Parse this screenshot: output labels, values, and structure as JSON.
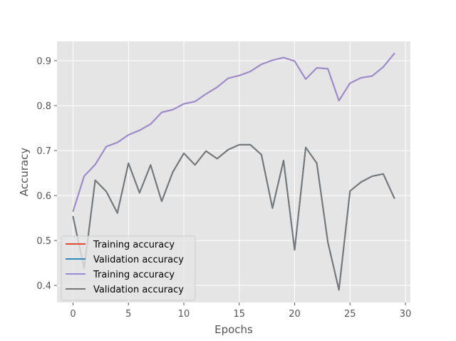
{
  "chart_data": {
    "type": "line",
    "xlabel": "Epochs",
    "ylabel": "Accuracy",
    "xlim": [
      -1.45,
      30.45
    ],
    "ylim": [
      0.362,
      0.943
    ],
    "xticks": [
      0,
      5,
      10,
      15,
      20,
      25,
      30
    ],
    "yticks": [
      0.4,
      0.5,
      0.6,
      0.7,
      0.8,
      0.9
    ],
    "grid": true,
    "legend_position": "lower-left",
    "x": [
      0,
      1,
      2,
      3,
      4,
      5,
      6,
      7,
      8,
      9,
      10,
      11,
      12,
      13,
      14,
      15,
      16,
      17,
      18,
      19,
      20,
      21,
      22,
      23,
      24,
      25,
      26,
      27,
      28,
      29
    ],
    "series": [
      {
        "name": "Training accuracy",
        "color": "#e24a33",
        "values": [
          0.565,
          0.643,
          0.669,
          0.709,
          0.718,
          0.735,
          0.745,
          0.759,
          0.785,
          0.791,
          0.804,
          0.809,
          0.826,
          0.841,
          0.861,
          0.867,
          0.876,
          0.892,
          0.901,
          0.907,
          0.899,
          0.859,
          0.884,
          0.882,
          0.811,
          0.85,
          0.862,
          0.866,
          0.886,
          0.916
        ]
      },
      {
        "name": "Validation accuracy",
        "color": "#348abd",
        "values": [
          0.553,
          0.438,
          0.634,
          0.609,
          0.561,
          0.672,
          0.606,
          0.668,
          0.587,
          0.652,
          0.694,
          0.668,
          0.699,
          0.682,
          0.702,
          0.713,
          0.713,
          0.691,
          0.572,
          0.678,
          0.479,
          0.707,
          0.672,
          0.496,
          0.39,
          0.61,
          0.63,
          0.643,
          0.648,
          0.594
        ]
      },
      {
        "name": "Training accuracy",
        "color": "#988ed5",
        "values": [
          0.565,
          0.643,
          0.669,
          0.709,
          0.718,
          0.735,
          0.745,
          0.759,
          0.785,
          0.791,
          0.804,
          0.809,
          0.826,
          0.841,
          0.861,
          0.867,
          0.876,
          0.892,
          0.901,
          0.907,
          0.899,
          0.859,
          0.884,
          0.882,
          0.811,
          0.85,
          0.862,
          0.866,
          0.886,
          0.916
        ]
      },
      {
        "name": "Validation accuracy",
        "color": "#777777",
        "values": [
          0.553,
          0.438,
          0.634,
          0.609,
          0.561,
          0.672,
          0.606,
          0.668,
          0.587,
          0.652,
          0.694,
          0.668,
          0.699,
          0.682,
          0.702,
          0.713,
          0.713,
          0.691,
          0.572,
          0.678,
          0.479,
          0.707,
          0.672,
          0.496,
          0.39,
          0.61,
          0.63,
          0.643,
          0.648,
          0.594
        ]
      }
    ]
  }
}
